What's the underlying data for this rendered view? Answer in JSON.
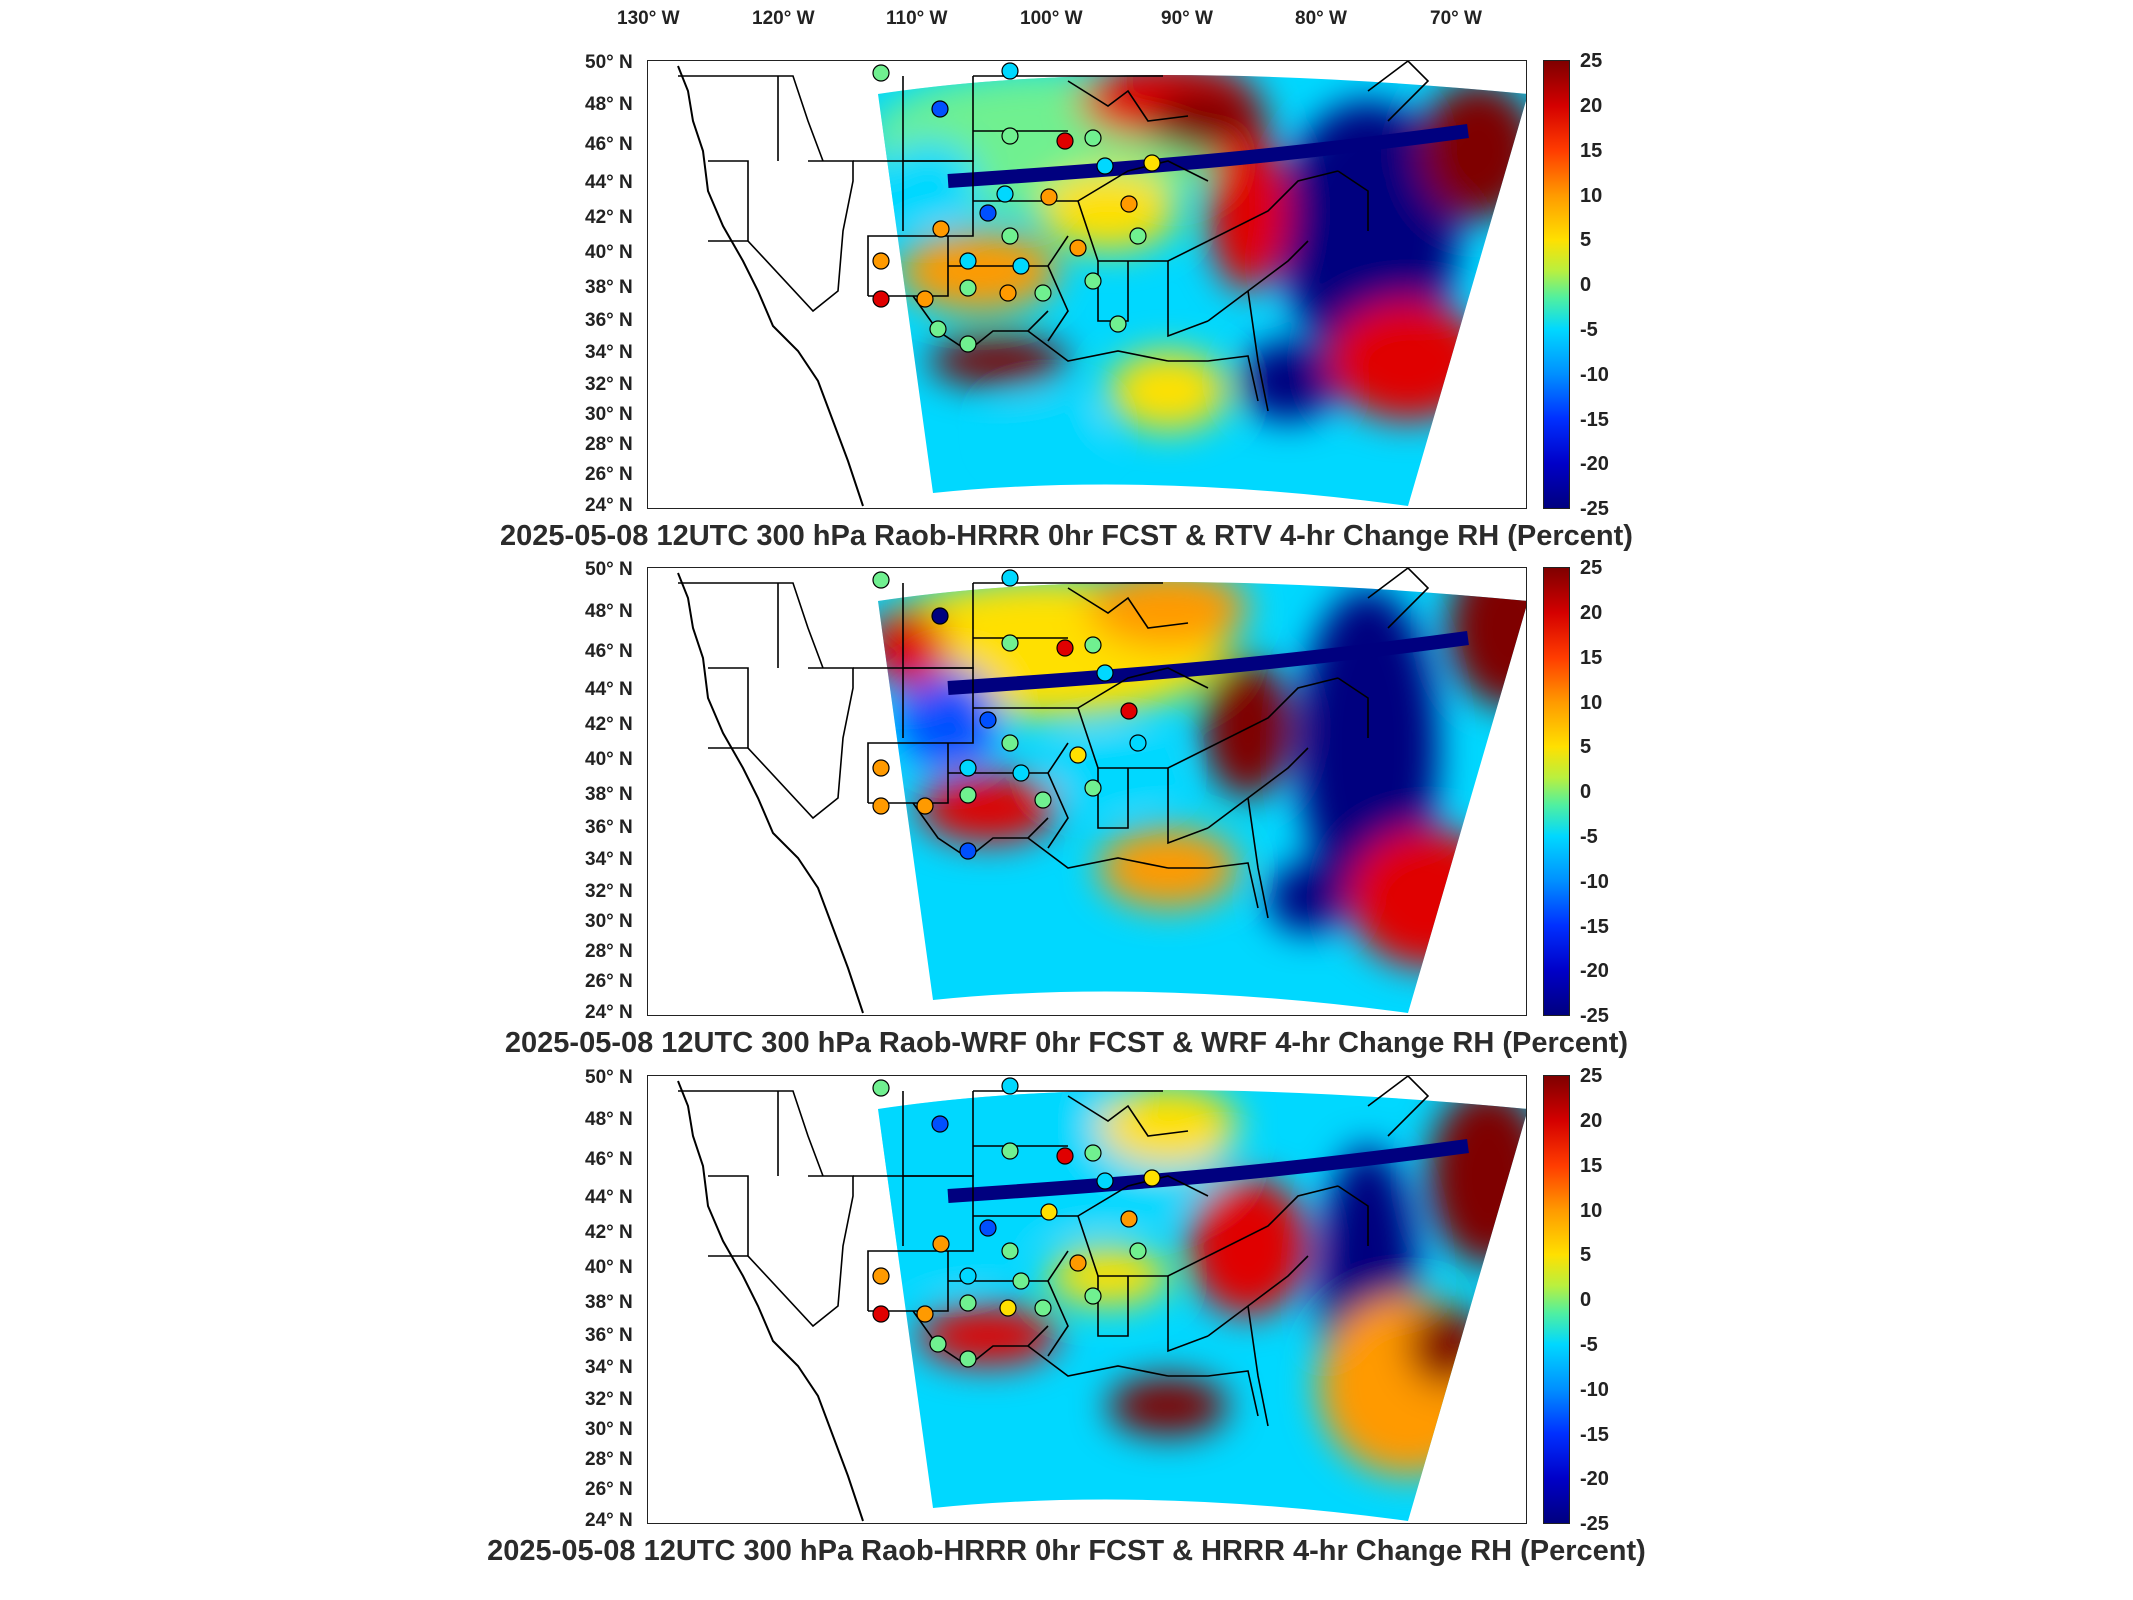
{
  "longitude_labels": [
    "130° W",
    "120° W",
    "110° W",
    "100° W",
    "90° W",
    "80° W",
    "70° W"
  ],
  "latitude_labels": [
    "50° N",
    "48° N",
    "46° N",
    "44° N",
    "42° N",
    "40° N",
    "38° N",
    "36° N",
    "34° N",
    "32° N",
    "30° N",
    "28° N",
    "26° N",
    "24° N"
  ],
  "colorbar_ticks": [
    "25",
    "20",
    "15",
    "10",
    "5",
    "0",
    "-5",
    "-10",
    "-15",
    "-20",
    "-25"
  ],
  "colorbar_range": [
    -25,
    25
  ],
  "colormap": "jet",
  "panels": [
    {
      "title": "2025-05-08 12UTC 300 hPa Raob-HRRR 0hr FCST & RTV 4-hr Change RH (Percent)"
    },
    {
      "title": "2025-05-08 12UTC 300 hPa Raob-WRF 0hr FCST & WRF 4-hr Change RH (Percent)"
    },
    {
      "title": "2025-05-08 12UTC 300 hPa Raob-HRRR 0hr FCST & HRRR 4-hr Change RH (Percent)"
    }
  ],
  "colors": {
    "dark_red": "#7f0000",
    "red": "#e00000",
    "orange": "#ff9a00",
    "yellow": "#ffe000",
    "green": "#70f090",
    "cyan": "#00d8ff",
    "blue": "#0050ff",
    "dark_blue": "#00007f",
    "border": "#000000"
  }
}
